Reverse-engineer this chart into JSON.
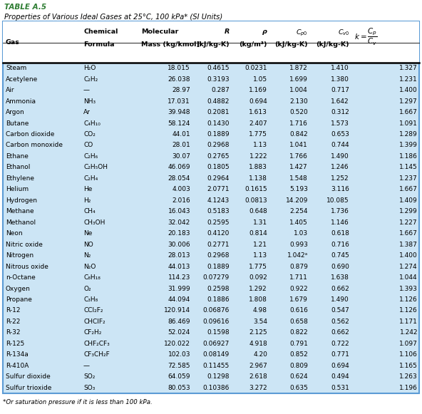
{
  "table_label": "TABLE A.5",
  "table_title": "Properties of Various Ideal Gases at 25°C, 100 kPa* (SI Units)",
  "rows": [
    [
      "Steam",
      "H₂O",
      "18.015",
      "0.4615",
      "0.0231",
      "1.872",
      "1.410",
      "1.327"
    ],
    [
      "Acetylene",
      "C₂H₂",
      "26.038",
      "0.3193",
      "1.05",
      "1.699",
      "1.380",
      "1.231"
    ],
    [
      "Air",
      "—",
      "28.97",
      "0.287",
      "1.169",
      "1.004",
      "0.717",
      "1.400"
    ],
    [
      "Ammonia",
      "NH₃",
      "17.031",
      "0.4882",
      "0.694",
      "2.130",
      "1.642",
      "1.297"
    ],
    [
      "Argon",
      "Ar",
      "39.948",
      "0.2081",
      "1.613",
      "0.520",
      "0.312",
      "1.667"
    ],
    [
      "Butane",
      "C₄H₁₀",
      "58.124",
      "0.1430",
      "2.407",
      "1.716",
      "1.573",
      "1.091"
    ],
    [
      "Carbon dioxide",
      "CO₂",
      "44.01",
      "0.1889",
      "1.775",
      "0.842",
      "0.653",
      "1.289"
    ],
    [
      "Carbon monoxide",
      "CO",
      "28.01",
      "0.2968",
      "1.13",
      "1.041",
      "0.744",
      "1.399"
    ],
    [
      "Ethane",
      "C₂H₆",
      "30.07",
      "0.2765",
      "1.222",
      "1.766",
      "1.490",
      "1.186"
    ],
    [
      "Ethanol",
      "C₂H₅OH",
      "46.069",
      "0.1805",
      "1.883",
      "1.427",
      "1.246",
      "1.145"
    ],
    [
      "Ethylene",
      "C₂H₄",
      "28.054",
      "0.2964",
      "1.138",
      "1.548",
      "1.252",
      "1.237"
    ],
    [
      "Helium",
      "He",
      "4.003",
      "2.0771",
      "0.1615",
      "5.193",
      "3.116",
      "1.667"
    ],
    [
      "Hydrogen",
      "H₂",
      "2.016",
      "4.1243",
      "0.0813",
      "14.209",
      "10.085",
      "1.409"
    ],
    [
      "Methane",
      "CH₄",
      "16.043",
      "0.5183",
      "0.648",
      "2.254",
      "1.736",
      "1.299"
    ],
    [
      "Methanol",
      "CH₃OH",
      "32.042",
      "0.2595",
      "1.31",
      "1.405",
      "1.146",
      "1.227"
    ],
    [
      "Neon",
      "Ne",
      "20.183",
      "0.4120",
      "0.814",
      "1.03",
      "0.618",
      "1.667"
    ],
    [
      "Nitric oxide",
      "NO",
      "30.006",
      "0.2771",
      "1.21",
      "0.993",
      "0.716",
      "1.387"
    ],
    [
      "Nitrogen",
      "N₂",
      "28.013",
      "0.2968",
      "1.13",
      "1.042ᵃ",
      "0.745",
      "1.400"
    ],
    [
      "Nitrous oxide",
      "N₂O",
      "44.013",
      "0.1889",
      "1.775",
      "0.879",
      "0.690",
      "1.274"
    ],
    [
      "n-Octane",
      "C₈H₁₈",
      "114.23",
      "0.07279",
      "0.092",
      "1.711",
      "1.638",
      "1.044"
    ],
    [
      "Oxygen",
      "O₂",
      "31.999",
      "0.2598",
      "1.292",
      "0.922",
      "0.662",
      "1.393"
    ],
    [
      "Propane",
      "C₃H₈",
      "44.094",
      "0.1886",
      "1.808",
      "1.679",
      "1.490",
      "1.126"
    ],
    [
      "R-12",
      "CCl₂F₂",
      "120.914",
      "0.06876",
      "4.98",
      "0.616",
      "0.547",
      "1.126"
    ],
    [
      "R-22",
      "CHClF₂",
      "86.469",
      "0.09616",
      "3.54",
      "0.658",
      "0.562",
      "1.171"
    ],
    [
      "R-32",
      "CF₂H₂",
      "52.024",
      "0.1598",
      "2.125",
      "0.822",
      "0.662",
      "1.242"
    ],
    [
      "R-125",
      "CHF₂CF₃",
      "120.022",
      "0.06927",
      "4.918",
      "0.791",
      "0.722",
      "1.097"
    ],
    [
      "R-134a",
      "CF₃CH₂F",
      "102.03",
      "0.08149",
      "4.20",
      "0.852",
      "0.771",
      "1.106"
    ],
    [
      "R-410A",
      "—",
      "72.585",
      "0.11455",
      "2.967",
      "0.809",
      "0.694",
      "1.165"
    ],
    [
      "Sulfur dioxide",
      "SO₂",
      "64.059",
      "0.1298",
      "2.618",
      "0.624",
      "0.494",
      "1.263"
    ],
    [
      "Sulfur trioxide",
      "SO₃",
      "80.053",
      "0.10386",
      "3.272",
      "0.635",
      "0.531",
      "1.196"
    ]
  ],
  "footnote": "*Or saturation pressure if it is less than 100 kPa.",
  "bg_color": "#cce5f5",
  "border_color": "#5b9bd5",
  "table_label_color": "#2e7d32",
  "figsize": [
    5.92,
    5.81
  ],
  "dpi": 100
}
